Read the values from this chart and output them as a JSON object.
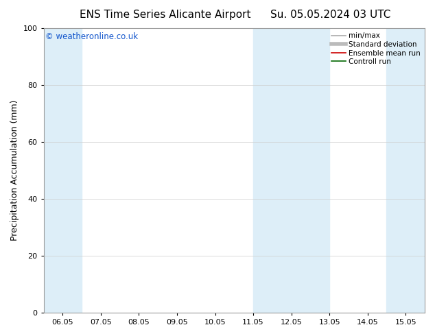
{
  "title_left": "ENS Time Series Alicante Airport",
  "title_right": "Su. 05.05.2024 03 UTC",
  "ylabel": "Precipitation Accumulation (mm)",
  "watermark": "© weatheronline.co.uk",
  "ylim": [
    0,
    100
  ],
  "yticks": [
    0,
    20,
    40,
    60,
    80,
    100
  ],
  "x_tick_labels": [
    "06.05",
    "07.05",
    "08.05",
    "09.05",
    "10.05",
    "11.05",
    "12.05",
    "13.05",
    "14.05",
    "15.05"
  ],
  "x_tick_positions": [
    6,
    7,
    8,
    9,
    10,
    11,
    12,
    13,
    14,
    15
  ],
  "xlim": [
    5.5,
    15.5
  ],
  "shaded_bands": [
    {
      "x_start": 5.5,
      "x_end": 6.5,
      "color": "#ddeef8"
    },
    {
      "x_start": 11.0,
      "x_end": 13.0,
      "color": "#ddeef8"
    },
    {
      "x_start": 14.5,
      "x_end": 15.5,
      "color": "#ddeef8"
    }
  ],
  "legend_entries": [
    {
      "label": "min/max",
      "color": "#aaaaaa",
      "linewidth": 1.2,
      "linestyle": "-"
    },
    {
      "label": "Standard deviation",
      "color": "#bbbbbb",
      "linewidth": 4,
      "linestyle": "-"
    },
    {
      "label": "Ensemble mean run",
      "color": "#cc0000",
      "linewidth": 1.2,
      "linestyle": "-"
    },
    {
      "label": "Controll run",
      "color": "#006600",
      "linewidth": 1.2,
      "linestyle": "-"
    }
  ],
  "watermark_color": "#1155cc",
  "background_color": "#ffffff",
  "plot_bg_color": "#ffffff",
  "grid_color": "#cccccc",
  "title_fontsize": 11,
  "tick_fontsize": 8,
  "ylabel_fontsize": 9,
  "legend_fontsize": 7.5
}
